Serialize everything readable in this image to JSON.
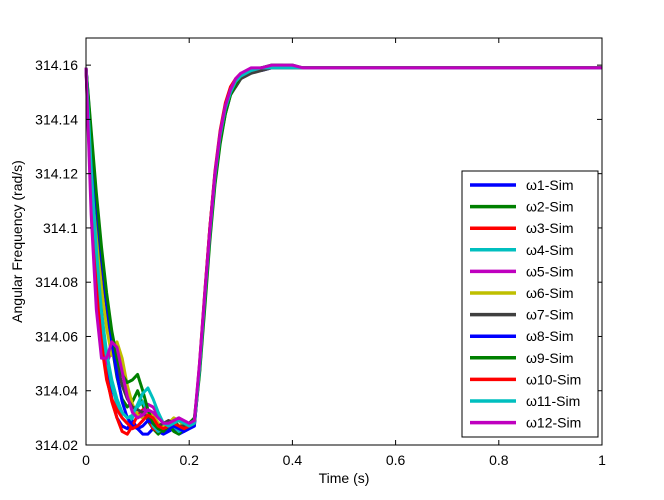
{
  "chart_data": {
    "type": "line",
    "xlabel": "Time (s)",
    "ylabel": "Angular Frequency (rad/s)",
    "xlim": [
      0,
      1
    ],
    "ylim": [
      314.02,
      314.17
    ],
    "grid": false,
    "legend_position": "lower-right",
    "xticks": [
      "0",
      "0.2",
      "0.4",
      "0.6",
      "0.8",
      "1"
    ],
    "yticks": [
      "314.02",
      "314.04",
      "314.06",
      "314.08",
      "314.1",
      "314.12",
      "314.14",
      "314.16"
    ],
    "x": [
      0,
      0.01,
      0.02,
      0.03,
      0.04,
      0.05,
      0.06,
      0.07,
      0.08,
      0.09,
      0.1,
      0.11,
      0.12,
      0.13,
      0.14,
      0.15,
      0.16,
      0.17,
      0.18,
      0.19,
      0.2,
      0.21,
      0.22,
      0.23,
      0.24,
      0.25,
      0.26,
      0.27,
      0.28,
      0.29,
      0.3,
      0.32,
      0.34,
      0.36,
      0.38,
      0.4,
      0.42,
      0.44,
      0.46,
      0.48,
      0.5,
      0.6,
      0.7,
      0.8,
      0.9,
      1.0
    ],
    "series": [
      {
        "name": "ω1-Sim",
        "color": "#0000ff",
        "values": [
          314.159,
          314.125,
          314.095,
          314.07,
          314.05,
          314.037,
          314.03,
          314.027,
          314.026,
          314.029,
          314.026,
          314.024,
          314.024,
          314.026,
          314.025,
          314.024,
          314.025,
          314.026,
          314.024,
          314.025,
          314.026,
          314.027,
          314.048,
          314.075,
          314.1,
          314.12,
          314.135,
          314.145,
          314.151,
          314.154,
          314.156,
          314.158,
          314.158,
          314.159,
          314.159,
          314.159,
          314.159,
          314.159,
          314.159,
          314.159,
          314.159,
          314.159,
          314.159,
          314.159,
          314.159,
          314.159
        ]
      },
      {
        "name": "ω2-Sim",
        "color": "#008000",
        "values": [
          314.159,
          314.13,
          314.105,
          314.085,
          314.07,
          314.057,
          314.045,
          314.037,
          314.034,
          314.036,
          314.04,
          314.035,
          314.029,
          314.026,
          314.024,
          314.026,
          314.028,
          314.025,
          314.024,
          314.026,
          314.028,
          314.03,
          314.047,
          314.072,
          314.098,
          314.118,
          314.133,
          314.143,
          314.15,
          314.152,
          314.155,
          314.158,
          314.159,
          314.16,
          314.16,
          314.16,
          314.159,
          314.159,
          314.159,
          314.159,
          314.159,
          314.159,
          314.159,
          314.159,
          314.159,
          314.159
        ]
      },
      {
        "name": "ω3-Sim",
        "color": "#ff0000",
        "values": [
          314.159,
          314.118,
          314.085,
          314.06,
          314.045,
          314.036,
          314.03,
          314.025,
          314.024,
          314.027,
          314.031,
          314.033,
          314.03,
          314.026,
          314.025,
          314.027,
          314.029,
          314.027,
          314.025,
          314.026,
          314.027,
          314.028,
          314.05,
          314.076,
          314.1,
          314.121,
          314.136,
          314.146,
          314.152,
          314.155,
          314.157,
          314.158,
          314.159,
          314.159,
          314.159,
          314.159,
          314.159,
          314.159,
          314.159,
          314.159,
          314.159,
          314.159,
          314.159,
          314.159,
          314.159,
          314.159
        ]
      },
      {
        "name": "ω4-Sim",
        "color": "#00bfbf",
        "values": [
          314.159,
          314.12,
          314.09,
          314.067,
          314.052,
          314.042,
          314.035,
          314.03,
          314.028,
          314.03,
          314.034,
          314.036,
          314.032,
          314.027,
          314.025,
          314.026,
          314.028,
          314.027,
          314.025,
          314.026,
          314.027,
          314.028,
          314.049,
          314.075,
          314.099,
          314.12,
          314.135,
          314.145,
          314.151,
          314.154,
          314.156,
          314.158,
          314.159,
          314.159,
          314.159,
          314.159,
          314.159,
          314.159,
          314.159,
          314.159,
          314.159,
          314.159,
          314.159,
          314.159,
          314.159,
          314.159
        ]
      },
      {
        "name": "ω5-Sim",
        "color": "#bf00bf",
        "values": [
          314.159,
          314.11,
          314.075,
          314.055,
          314.05,
          314.055,
          314.055,
          314.048,
          314.04,
          314.033,
          314.03,
          314.032,
          314.035,
          314.034,
          314.031,
          314.028,
          314.027,
          314.029,
          314.03,
          314.028,
          314.027,
          314.028,
          314.049,
          314.074,
          314.098,
          314.119,
          314.134,
          314.144,
          314.15,
          314.154,
          314.156,
          314.158,
          314.159,
          314.159,
          314.159,
          314.159,
          314.159,
          314.159,
          314.159,
          314.159,
          314.159,
          314.159,
          314.159,
          314.159,
          314.159,
          314.159
        ]
      },
      {
        "name": "ω6-Sim",
        "color": "#bfbf00",
        "values": [
          314.159,
          314.128,
          314.1,
          314.078,
          314.063,
          314.053,
          314.058,
          314.052,
          314.042,
          314.035,
          314.031,
          314.03,
          314.032,
          314.031,
          314.028,
          314.027,
          314.028,
          314.03,
          314.029,
          314.027,
          314.027,
          314.028,
          314.048,
          314.073,
          314.097,
          314.118,
          314.133,
          314.143,
          314.15,
          314.153,
          314.156,
          314.158,
          314.159,
          314.159,
          314.159,
          314.159,
          314.159,
          314.159,
          314.159,
          314.159,
          314.159,
          314.159,
          314.159,
          314.159,
          314.159,
          314.159
        ]
      },
      {
        "name": "ω7-Sim",
        "color": "#404040",
        "values": [
          314.159,
          314.132,
          314.108,
          314.088,
          314.072,
          314.06,
          314.05,
          314.042,
          314.037,
          314.034,
          314.033,
          314.032,
          314.03,
          314.028,
          314.027,
          314.028,
          314.029,
          314.028,
          314.027,
          314.027,
          314.028,
          314.029,
          314.047,
          314.072,
          314.097,
          314.117,
          314.132,
          314.142,
          314.149,
          314.152,
          314.155,
          314.157,
          314.158,
          314.159,
          314.159,
          314.159,
          314.159,
          314.159,
          314.159,
          314.159,
          314.159,
          314.159,
          314.159,
          314.159,
          314.159,
          314.159
        ]
      },
      {
        "name": "ω8-Sim",
        "color": "#0000ff",
        "values": [
          314.159,
          314.134,
          314.11,
          314.09,
          314.072,
          314.058,
          314.046,
          314.036,
          314.03,
          314.027,
          314.026,
          314.027,
          314.029,
          314.028,
          314.026,
          314.025,
          314.026,
          314.027,
          314.026,
          314.025,
          314.026,
          314.027,
          314.048,
          314.074,
          314.099,
          314.12,
          314.135,
          314.145,
          314.151,
          314.154,
          314.156,
          314.158,
          314.159,
          314.159,
          314.159,
          314.159,
          314.159,
          314.159,
          314.159,
          314.159,
          314.159,
          314.159,
          314.159,
          314.159,
          314.159,
          314.159
        ]
      },
      {
        "name": "ω9-Sim",
        "color": "#008000",
        "values": [
          314.159,
          314.136,
          314.113,
          314.093,
          314.076,
          314.062,
          314.052,
          314.046,
          314.043,
          314.044,
          314.046,
          314.04,
          314.033,
          314.028,
          314.026,
          314.025,
          314.027,
          314.029,
          314.027,
          314.026,
          314.027,
          314.028,
          314.046,
          314.07,
          314.095,
          314.116,
          314.131,
          314.142,
          314.149,
          314.153,
          314.156,
          314.158,
          314.159,
          314.16,
          314.16,
          314.159,
          314.159,
          314.159,
          314.159,
          314.159,
          314.159,
          314.159,
          314.159,
          314.159,
          314.159,
          314.159
        ]
      },
      {
        "name": "ω10-Sim",
        "color": "#ff0000",
        "values": [
          314.159,
          314.115,
          314.08,
          314.057,
          314.044,
          314.037,
          314.033,
          314.03,
          314.028,
          314.026,
          314.027,
          314.029,
          314.031,
          314.03,
          314.027,
          314.026,
          314.027,
          314.028,
          314.027,
          314.026,
          314.027,
          314.028,
          314.049,
          314.075,
          314.1,
          314.12,
          314.135,
          314.145,
          314.151,
          314.154,
          314.156,
          314.158,
          314.159,
          314.159,
          314.159,
          314.159,
          314.159,
          314.159,
          314.159,
          314.159,
          314.159,
          314.159,
          314.159,
          314.159,
          314.159,
          314.159
        ]
      },
      {
        "name": "ω11-Sim",
        "color": "#00bfbf",
        "values": [
          314.159,
          314.122,
          314.092,
          314.069,
          314.054,
          314.044,
          314.037,
          314.032,
          314.03,
          314.031,
          314.035,
          314.039,
          314.041,
          314.037,
          314.032,
          314.028,
          314.027,
          314.028,
          314.029,
          314.028,
          314.027,
          314.028,
          314.048,
          314.074,
          314.098,
          314.119,
          314.134,
          314.144,
          314.15,
          314.154,
          314.156,
          314.158,
          314.159,
          314.159,
          314.159,
          314.159,
          314.159,
          314.159,
          314.159,
          314.159,
          314.159,
          314.159,
          314.159,
          314.159,
          314.159,
          314.159
        ]
      },
      {
        "name": "ω12-Sim",
        "color": "#bf00bf",
        "values": [
          314.159,
          314.105,
          314.07,
          314.052,
          314.052,
          314.058,
          314.056,
          314.047,
          314.038,
          314.032,
          314.03,
          314.031,
          314.033,
          314.032,
          314.03,
          314.028,
          314.028,
          314.029,
          314.03,
          314.029,
          314.028,
          314.029,
          314.05,
          314.075,
          314.099,
          314.12,
          314.135,
          314.145,
          314.151,
          314.155,
          314.157,
          314.159,
          314.159,
          314.16,
          314.16,
          314.16,
          314.159,
          314.159,
          314.159,
          314.159,
          314.159,
          314.159,
          314.159,
          314.159,
          314.159,
          314.159
        ]
      }
    ]
  }
}
